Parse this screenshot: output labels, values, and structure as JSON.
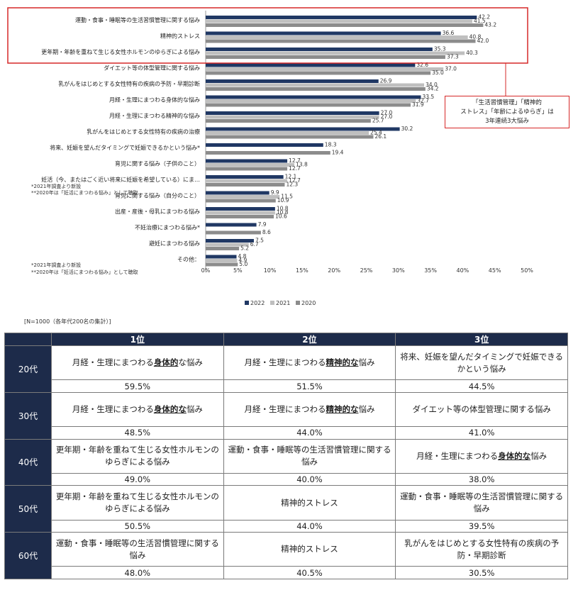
{
  "chart_data": {
    "type": "bar",
    "orientation": "horizontal",
    "categories": [
      "運動・食事・睡眠等の生活習慣管理に関する悩み",
      "精神的ストレス",
      "更年期・年齢を重ねて生じる女性ホルモンのゆらぎによる悩み",
      "ダイエット等の体型管理に関する悩み",
      "乳がんをはじめとする女性特有の疾病の予防・早期診断",
      "月経・生理にまつわる身体的な悩み",
      "月経・生理にまつわる精神的な悩み",
      "乳がんをはじめとする女性特有の疾病の治療",
      "将来、妊娠を望んだタイミングで妊娠できるかという悩み*",
      "育児に関する悩み（子供のこと）",
      "妊活（今、またはごく近い将来に妊娠を希望している）にま…",
      "育児に関する悩み（自分のこと）",
      "出産・産後・母乳にまつわる悩み",
      "不妊治療にまつわる悩み*",
      "避妊にまつわる悩み",
      "その他："
    ],
    "series": [
      {
        "name": "2022",
        "color": "#203864",
        "values": [
          42.2,
          36.6,
          35.3,
          32.6,
          26.9,
          33.5,
          27.0,
          30.2,
          18.3,
          12.7,
          12.1,
          9.9,
          10.8,
          7.9,
          7.5,
          4.8
        ]
      },
      {
        "name": "2021",
        "color": "#bfbfbf",
        "values": [
          41.5,
          40.8,
          40.3,
          37.0,
          34.0,
          32.7,
          27.0,
          25.4,
          null,
          13.8,
          12.7,
          11.5,
          10.8,
          null,
          6.7,
          4.9
        ]
      },
      {
        "name": "2020",
        "color": "#8c8c8c",
        "values": [
          43.2,
          42.0,
          37.3,
          35.0,
          34.2,
          31.9,
          25.7,
          26.1,
          19.4,
          12.7,
          12.3,
          10.9,
          10.6,
          8.6,
          5.2,
          5.0
        ]
      }
    ],
    "xlim": [
      0,
      50
    ],
    "xticks": [
      "0%",
      "5%",
      "10%",
      "15%",
      "20%",
      "25%",
      "30%",
      "35%",
      "40%",
      "45%",
      "50%"
    ],
    "legend": [
      "2022",
      "2021",
      "2020"
    ],
    "legend_position": "bottom",
    "footnotes": [
      "*2021年調査より新設",
      "**2020年は「妊活にまつわる悩み」として聴取"
    ],
    "overlap_footnotes": [
      "*2021年調査より新設",
      "**2020年は「妊活にまつわる悩み」として聴取"
    ],
    "callout": [
      "「生活習慣管理」「精神的",
      "ストレス」「年齢によるゆらぎ」は",
      "3年連続3大悩み"
    ],
    "highlight_color": "#d62828"
  },
  "table": {
    "n_label": "[N=1000（各年代200名の集計）]",
    "headers": [
      "1位",
      "2位",
      "3位"
    ],
    "rows": [
      {
        "age": "20代",
        "items": [
          {
            "pre": "月経・生理にまつわる",
            "em": "身体的",
            "post": "な悩み"
          },
          {
            "pre": "月経・生理にまつわる",
            "em": "精神的な",
            "post": "悩み"
          },
          {
            "pre": "将来、妊娠を望んだタイミングで妊娠できるかという悩み",
            "em": "",
            "post": ""
          }
        ],
        "pcts": [
          "59.5%",
          "51.5%",
          "44.5%"
        ]
      },
      {
        "age": "30代",
        "items": [
          {
            "pre": "月経・生理にまつわる",
            "em": "身体的な",
            "post": "悩み"
          },
          {
            "pre": "月経・生理にまつわる",
            "em": "精神的な",
            "post": "悩み"
          },
          {
            "pre": "ダイエット等の体型管理に関する悩み",
            "em": "",
            "post": ""
          }
        ],
        "pcts": [
          "48.5%",
          "44.0%",
          "41.0%"
        ]
      },
      {
        "age": "40代",
        "items": [
          {
            "pre": "更年期・年齢を重ねて生じる女性ホルモンのゆらぎによる悩み",
            "em": "",
            "post": ""
          },
          {
            "pre": "運動・食事・睡眠等の生活習慣管理に関する悩み",
            "em": "",
            "post": ""
          },
          {
            "pre": "月経・生理にまつわる",
            "em": "身体的な",
            "post": "悩み"
          }
        ],
        "pcts": [
          "49.0%",
          "40.0%",
          "38.0%"
        ]
      },
      {
        "age": "50代",
        "items": [
          {
            "pre": "更年期・年齢を重ねて生じる女性ホルモンのゆらぎによる悩み",
            "em": "",
            "post": ""
          },
          {
            "pre": "精神的ストレス",
            "em": "",
            "post": ""
          },
          {
            "pre": "運動・食事・睡眠等の生活習慣管理に関する悩み",
            "em": "",
            "post": ""
          }
        ],
        "pcts": [
          "50.5%",
          "44.0%",
          "39.5%"
        ]
      },
      {
        "age": "60代",
        "items": [
          {
            "pre": "運動・食事・睡眠等の生活習慣管理に関する悩み",
            "em": "",
            "post": ""
          },
          {
            "pre": "精神的ストレス",
            "em": "",
            "post": ""
          },
          {
            "pre": "乳がんをはじめとする女性特有の疾病の予防・早期診断",
            "em": "",
            "post": ""
          }
        ],
        "pcts": [
          "48.0%",
          "40.5%",
          "30.5%"
        ]
      }
    ]
  }
}
